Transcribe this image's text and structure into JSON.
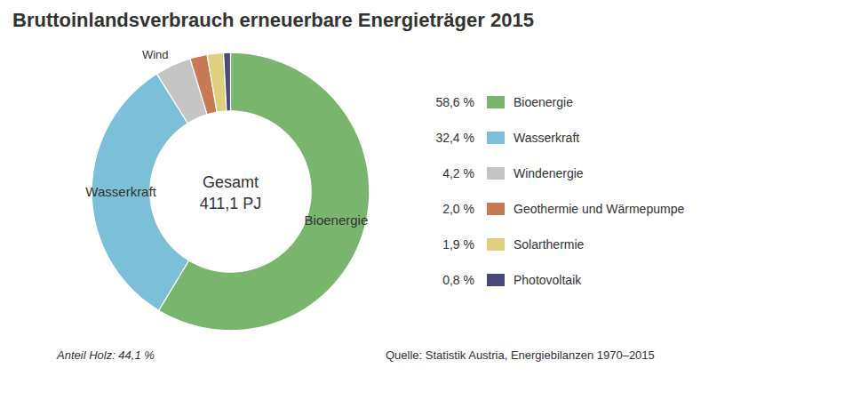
{
  "chart_data": {
    "type": "donut",
    "title": "Bruttoinlandsverbrauch erneuerbare Energieträger 2015",
    "categories": [
      "Bioenergie",
      "Wasserkraft",
      "Windenergie",
      "Geothermie und Wärmepumpe",
      "Solarthermie",
      "Photovoltaik"
    ],
    "values": [
      58.6,
      32.4,
      4.2,
      2.0,
      1.9,
      0.8
    ],
    "value_labels": [
      "58,6 %",
      "32,4 %",
      "4,2 %",
      "2,0 %",
      "1,9 %",
      "0,8 %"
    ],
    "colors": [
      "#7ab56e",
      "#7bbfd8",
      "#c5c5c5",
      "#c87a55",
      "#dfd080",
      "#4a4a7a"
    ],
    "legend": "right",
    "annotations": [
      "Bioenergie",
      "Wasserkraft",
      "Wind"
    ],
    "center_text": [
      "Gesamt",
      "411,1 PJ"
    ],
    "footnotes": [
      "Anteil Holz: 44,1 %",
      "Quelle: Statistik Austria, Energiebilanzen 1970–2015"
    ]
  }
}
